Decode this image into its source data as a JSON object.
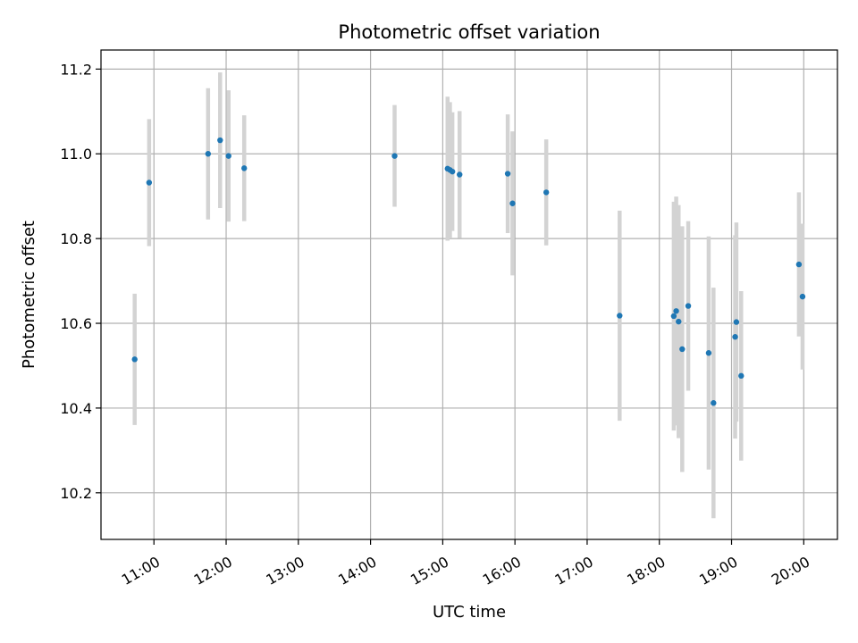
{
  "chart_data": {
    "type": "scatter",
    "title": "Photometric offset variation",
    "xlabel": "UTC time",
    "ylabel": "Photometric offset",
    "grid": true,
    "xlim": [
      "10:16",
      "20:28"
    ],
    "ylim": [
      10.09,
      11.245
    ],
    "x_ticks": [
      "11:00",
      "12:00",
      "13:00",
      "14:00",
      "15:00",
      "16:00",
      "17:00",
      "18:00",
      "19:00",
      "20:00"
    ],
    "y_ticks": [
      "10.2",
      "10.4",
      "10.6",
      "10.8",
      "11.0",
      "11.2"
    ],
    "colors": {
      "points": "#1f77b4",
      "error_bars": "#d3d3d3",
      "grid": "#b0b0b0"
    },
    "points": [
      {
        "x": "10:44",
        "y": 10.515,
        "err": 0.155
      },
      {
        "x": "10:56",
        "y": 10.932,
        "err": 0.15
      },
      {
        "x": "11:45",
        "y": 11.0,
        "err": 0.155
      },
      {
        "x": "11:55",
        "y": 11.032,
        "err": 0.16
      },
      {
        "x": "12:02",
        "y": 10.995,
        "err": 0.155
      },
      {
        "x": "12:15",
        "y": 10.966,
        "err": 0.125
      },
      {
        "x": "14:20",
        "y": 10.995,
        "err": 0.12
      },
      {
        "x": "15:04",
        "y": 10.965,
        "err": 0.17
      },
      {
        "x": "15:06",
        "y": 10.962,
        "err": 0.16
      },
      {
        "x": "15:08",
        "y": 10.958,
        "err": 0.14
      },
      {
        "x": "15:14",
        "y": 10.951,
        "err": 0.15
      },
      {
        "x": "15:54",
        "y": 10.953,
        "err": 0.14
      },
      {
        "x": "15:58",
        "y": 10.883,
        "err": 0.17
      },
      {
        "x": "16:26",
        "y": 10.909,
        "err": 0.125
      },
      {
        "x": "17:27",
        "y": 10.618,
        "err": 0.248
      },
      {
        "x": "18:12",
        "y": 10.617,
        "err": 0.27
      },
      {
        "x": "18:14",
        "y": 10.629,
        "err": 0.27
      },
      {
        "x": "18:16",
        "y": 10.604,
        "err": 0.275
      },
      {
        "x": "18:19",
        "y": 10.539,
        "err": 0.29
      },
      {
        "x": "18:24",
        "y": 10.641,
        "err": 0.2
      },
      {
        "x": "18:41",
        "y": 10.53,
        "err": 0.275
      },
      {
        "x": "18:45",
        "y": 10.412,
        "err": 0.272
      },
      {
        "x": "19:03",
        "y": 10.568,
        "err": 0.24
      },
      {
        "x": "19:04",
        "y": 10.603,
        "err": 0.235
      },
      {
        "x": "19:08",
        "y": 10.476,
        "err": 0.2
      },
      {
        "x": "19:56",
        "y": 10.739,
        "err": 0.17
      },
      {
        "x": "19:59",
        "y": 10.663,
        "err": 0.172
      }
    ]
  }
}
